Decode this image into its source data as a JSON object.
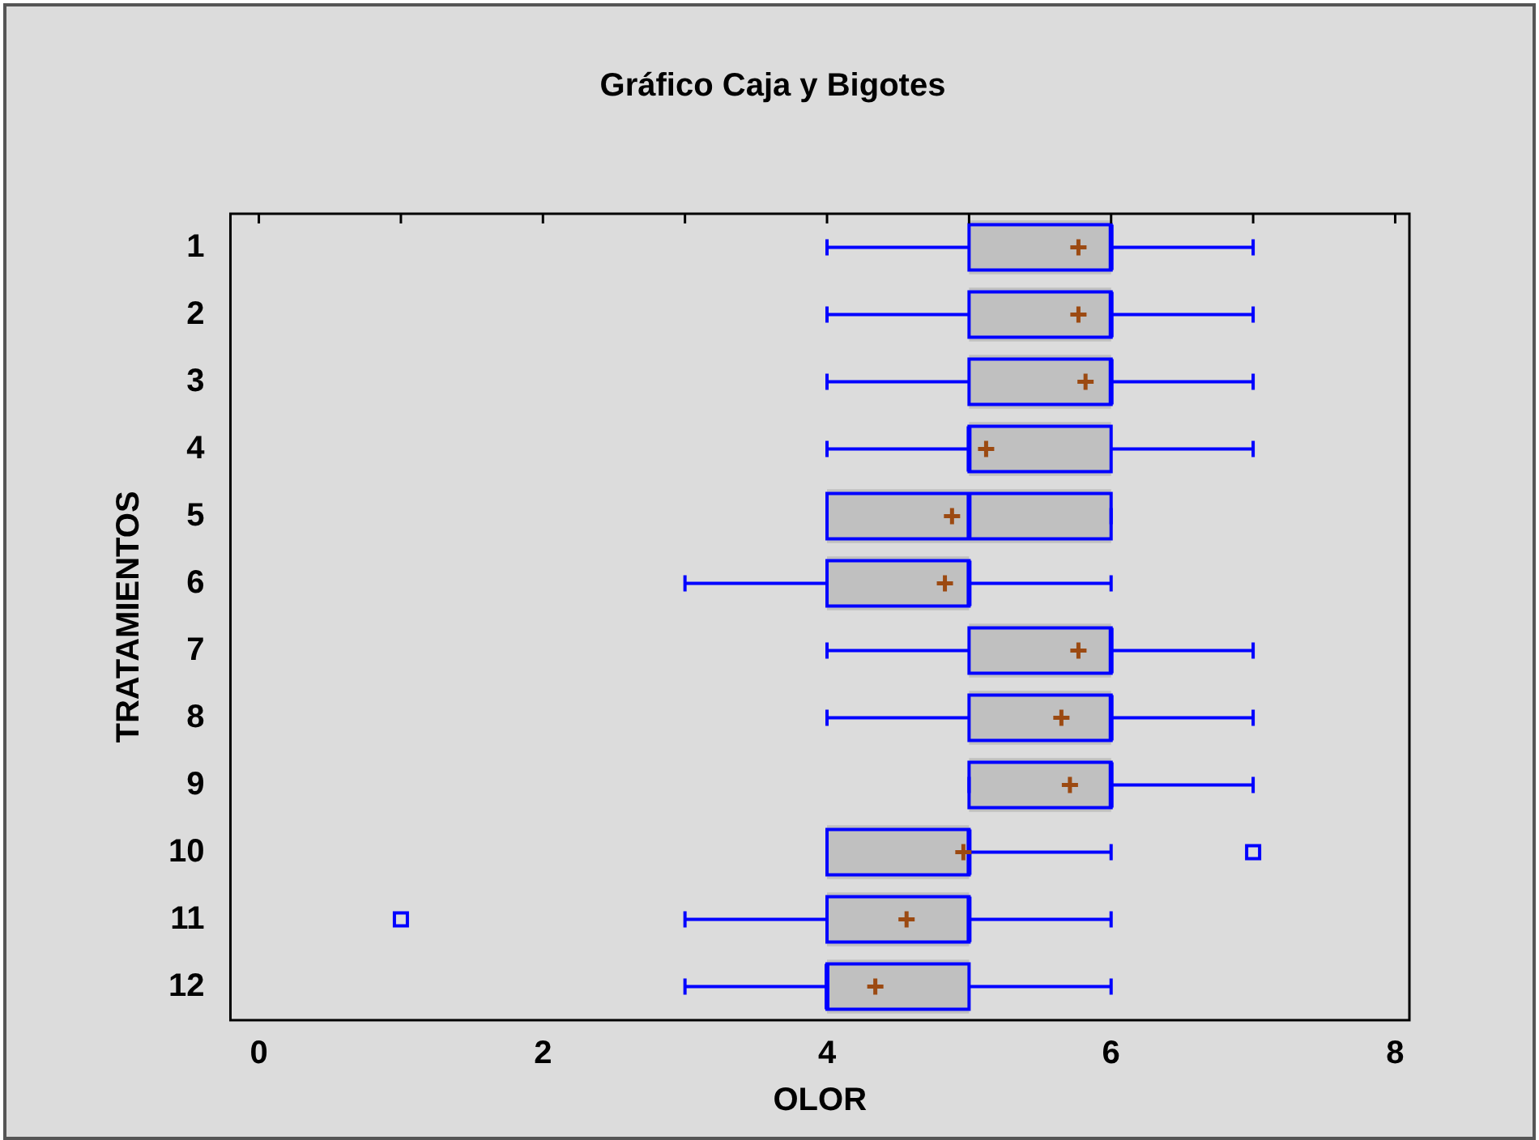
{
  "chart_data": {
    "type": "box",
    "title": "Gráfico Caja y Bigotes",
    "xlabel": "OLOR",
    "ylabel": "TRATAMIENTOS",
    "orientation": "horizontal",
    "categories": [
      "1",
      "2",
      "3",
      "4",
      "5",
      "6",
      "7",
      "8",
      "9",
      "10",
      "11",
      "12"
    ],
    "xlim": [
      -0.2,
      8.1
    ],
    "xticks": [
      0,
      {
        "value": 1,
        "label": null
      },
      2,
      {
        "value": 3,
        "label": null
      },
      4,
      {
        "value": 5,
        "label": null
      },
      6,
      {
        "value": 7,
        "label": null
      },
      8
    ],
    "grid": false,
    "legend": false,
    "marker": "cross",
    "series": [
      {
        "color": "#c0c0c0",
        "boxes": [
          {
            "low": 4,
            "q1": 5,
            "median": 6,
            "q3": 6,
            "high": 7,
            "mean": 5.77
          },
          {
            "low": 4,
            "q1": 5,
            "median": 6,
            "q3": 6,
            "high": 7,
            "mean": 5.77
          },
          {
            "low": 4,
            "q1": 5,
            "median": 6,
            "q3": 6,
            "high": 7,
            "mean": 5.82
          },
          {
            "low": 4,
            "q1": 5,
            "median": 5,
            "q3": 6,
            "high": 7,
            "mean": 5.12
          },
          {
            "low": 4,
            "q1": 4,
            "median": 5,
            "q3": 6,
            "high": 6,
            "mean": 4.88
          },
          {
            "low": 3,
            "q1": 4,
            "median": 5,
            "q3": 5,
            "high": 6,
            "mean": 4.83
          },
          {
            "low": 4,
            "q1": 5,
            "median": 6,
            "q3": 6,
            "high": 7,
            "mean": 5.77
          },
          {
            "low": 4,
            "q1": 5,
            "median": 6,
            "q3": 6,
            "high": 7,
            "mean": 5.65
          },
          {
            "low": 5,
            "q1": 5,
            "median": 6,
            "q3": 6,
            "high": 7,
            "mean": 5.71
          },
          {
            "low": 4,
            "q1": 4,
            "median": 5,
            "q3": 5,
            "high": 6,
            "mean": 4.96,
            "outliers": [
              7
            ]
          },
          {
            "low": 3,
            "q1": 4,
            "median": 5,
            "q3": 5,
            "high": 6,
            "mean": 4.56,
            "outliers": [
              1
            ]
          },
          {
            "low": 3,
            "q1": 4,
            "median": 4,
            "q3": 5,
            "high": 6,
            "mean": 4.34
          }
        ]
      }
    ]
  }
}
